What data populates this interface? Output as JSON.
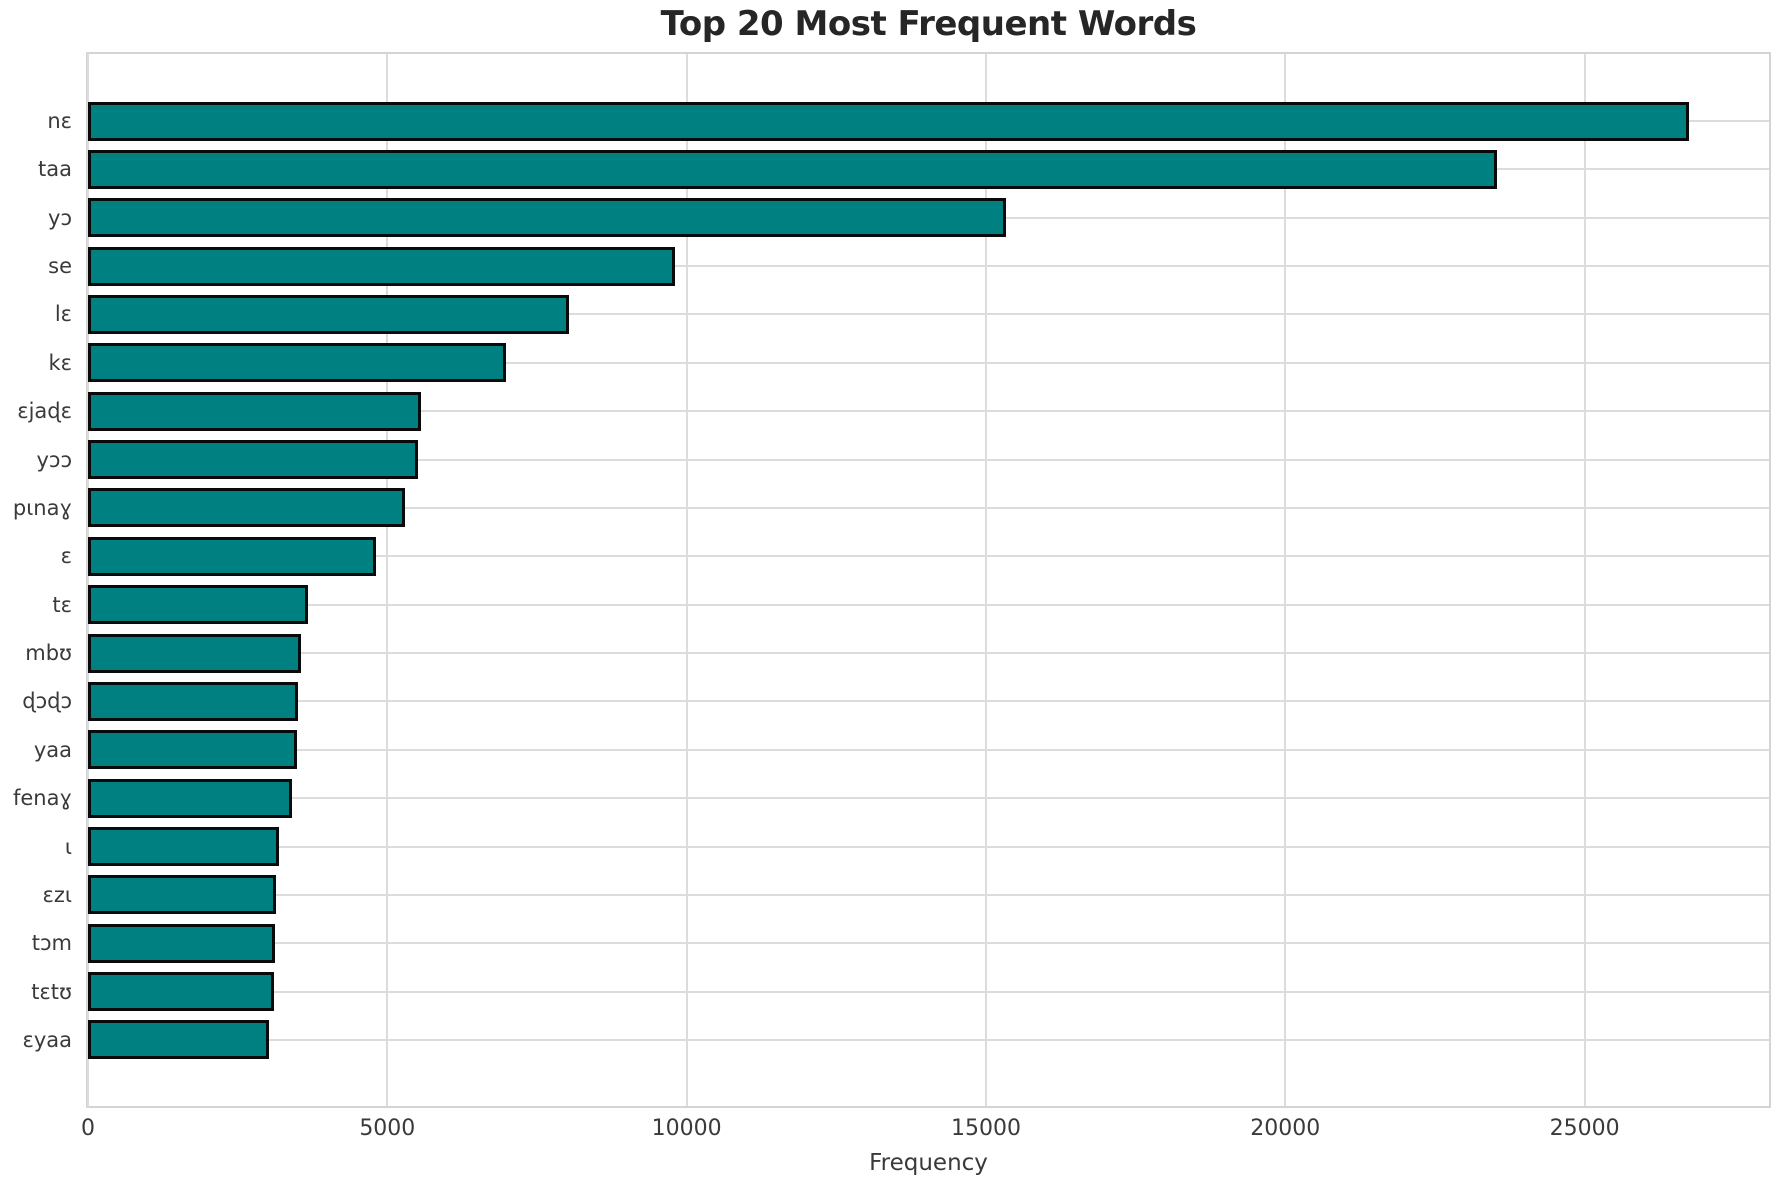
{
  "chart_data": {
    "type": "bar",
    "orientation": "horizontal",
    "title": "Top 20 Most Frequent Words",
    "xlabel": "Frequency",
    "ylabel": "",
    "categories": [
      "nɛ",
      "taa",
      "yɔ",
      "se",
      "lɛ",
      "kɛ",
      "ɛjaɖɛ",
      "yɔɔ",
      "pɩnaɣ",
      "ɛ",
      "tɛ",
      "mbʊ",
      "ɖɔɖɔ",
      "yaa",
      "fenaɣ",
      "ɩ",
      "ɛzɩ",
      "tɔm",
      "tɛtʊ",
      "ɛyaa"
    ],
    "values": [
      26750,
      23540,
      15330,
      9800,
      8030,
      6980,
      5560,
      5510,
      5290,
      4810,
      3670,
      3550,
      3500,
      3490,
      3400,
      3190,
      3140,
      3125,
      3100,
      3020
    ],
    "xlim": [
      0,
      28080
    ],
    "xticks": [
      0,
      5000,
      10000,
      15000,
      20000,
      25000
    ],
    "grid": true,
    "legend": "none",
    "bar_color": "#008080",
    "bar_edge_color": "#0a0a0a",
    "grid_color": "#dcdcdc",
    "spine_color": "#d4d4d4",
    "tick_text_color": "#3a3a3a",
    "title_color": "#262626",
    "background_color": "#ffffff"
  }
}
